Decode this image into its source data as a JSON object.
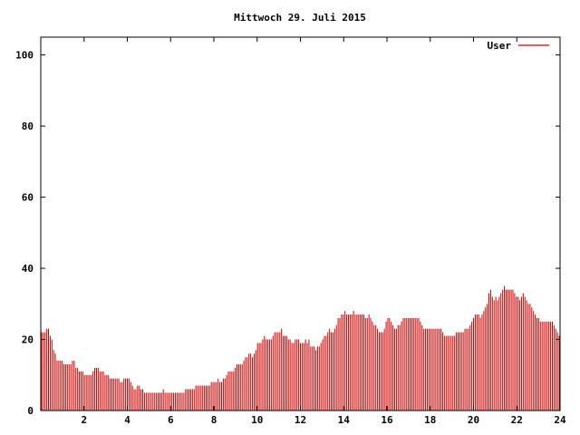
{
  "chart_data": {
    "type": "bar",
    "title": "Mittwoch 29. Juli 2015",
    "xlabel": "",
    "ylabel": "",
    "xlim": [
      0,
      24
    ],
    "ylim": [
      0,
      105
    ],
    "x_ticks": [
      "2",
      "4",
      "6",
      "8",
      "10",
      "12",
      "14",
      "16",
      "18",
      "20",
      "22",
      "24"
    ],
    "y_ticks": [
      "0",
      "20",
      "40",
      "60",
      "80",
      "100"
    ],
    "legend_position": "top-right",
    "grid": false,
    "bar_color": "#cc0000",
    "series": [
      {
        "name": "User",
        "interval_hours": 0.0833,
        "values": [
          22,
          22,
          22,
          23,
          23,
          21,
          20,
          17,
          16,
          14,
          14,
          14,
          14,
          13,
          13,
          13,
          13,
          13,
          14,
          14,
          12,
          12,
          11,
          11,
          11,
          10,
          10,
          10,
          10,
          10,
          11,
          12,
          12,
          12,
          11,
          11,
          11,
          10,
          10,
          10,
          9,
          9,
          9,
          9,
          9,
          9,
          8,
          8,
          9,
          9,
          9,
          9,
          8,
          7,
          6,
          6,
          7,
          7,
          6,
          6,
          5,
          5,
          5,
          5,
          5,
          5,
          5,
          5,
          5,
          5,
          5,
          6,
          5,
          5,
          5,
          5,
          5,
          5,
          5,
          5,
          5,
          5,
          5,
          5,
          6,
          6,
          6,
          6,
          6,
          6,
          7,
          7,
          7,
          7,
          7,
          7,
          7,
          7,
          7,
          8,
          8,
          8,
          8,
          9,
          8,
          8,
          9,
          9,
          10,
          11,
          11,
          11,
          11,
          12,
          13,
          13,
          13,
          13,
          14,
          15,
          15,
          16,
          16,
          15,
          16,
          17,
          19,
          19,
          19,
          20,
          21,
          20,
          20,
          20,
          20,
          21,
          22,
          22,
          22,
          22,
          23,
          21,
          21,
          21,
          20,
          20,
          19,
          19,
          20,
          20,
          20,
          19,
          19,
          19,
          20,
          19,
          20,
          18,
          18,
          18,
          17,
          18,
          18,
          19,
          20,
          21,
          21,
          22,
          23,
          22,
          22,
          23,
          24,
          26,
          26,
          27,
          27,
          28,
          27,
          27,
          27,
          27,
          28,
          27,
          27,
          27,
          27,
          27,
          27,
          26,
          26,
          27,
          26,
          25,
          24,
          24,
          23,
          22,
          22,
          22,
          23,
          25,
          26,
          26,
          25,
          24,
          23,
          23,
          24,
          24,
          25,
          26,
          26,
          26,
          26,
          26,
          26,
          26,
          26,
          26,
          26,
          25,
          24,
          23,
          23,
          23,
          23,
          23,
          23,
          23,
          23,
          23,
          23,
          23,
          22,
          21,
          21,
          21,
          21,
          21,
          21,
          21,
          22,
          22,
          22,
          22,
          22,
          23,
          23,
          23,
          24,
          25,
          26,
          27,
          27,
          27,
          26,
          27,
          28,
          29,
          30,
          33,
          34,
          32,
          31,
          32,
          31,
          32,
          33,
          34,
          35,
          34,
          34,
          34,
          34,
          34,
          33,
          32,
          32,
          31,
          32,
          33,
          32,
          31,
          30,
          30,
          29,
          28,
          27,
          26,
          26,
          25,
          25,
          25,
          25,
          25,
          25,
          25,
          25,
          24,
          23,
          22,
          21
        ]
      }
    ]
  }
}
